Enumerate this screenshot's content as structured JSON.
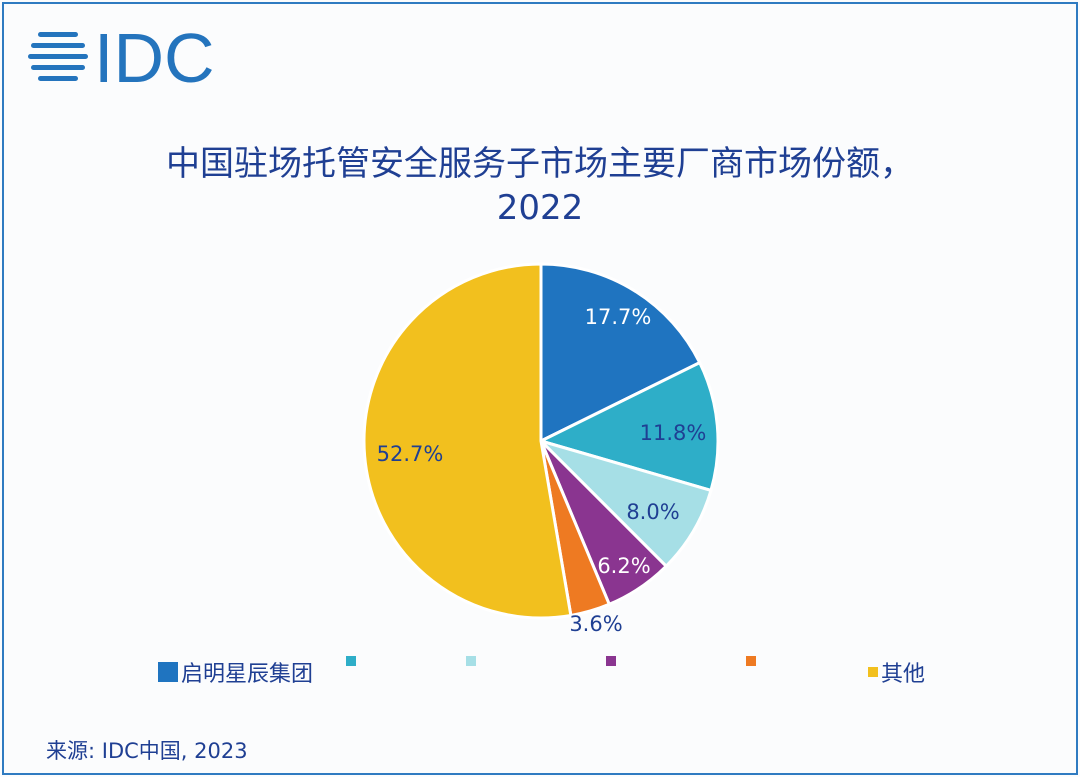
{
  "logo_text": "IDC",
  "chart_data": {
    "type": "pie",
    "title": "中国驻场托管安全服务子市场主要厂商市场份额，",
    "subtitle": "2022",
    "start": "top",
    "direction": "clockwise",
    "slices": [
      {
        "label": "启明星辰集团",
        "value": 17.7,
        "display": "17.7%",
        "color": "#1f74c0",
        "label_color": "#ffffff"
      },
      {
        "label": "",
        "value": 11.8,
        "display": "11.8%",
        "color": "#2eaec8",
        "label_color": "#1f3f93"
      },
      {
        "label": "",
        "value": 8.0,
        "display": "8.0%",
        "color": "#a6dfe6",
        "label_color": "#1f3f93"
      },
      {
        "label": "",
        "value": 6.2,
        "display": "6.2%",
        "color": "#8a3590",
        "label_color": "#ffffff"
      },
      {
        "label": "",
        "value": 3.6,
        "display": "3.6%",
        "color": "#ee7a22",
        "label_color": "#1f3f93"
      },
      {
        "label": "其他",
        "value": 52.7,
        "display": "52.7%",
        "color": "#f2c01e",
        "label_color": "#1f3f93"
      }
    ],
    "legend": "bottom"
  },
  "source": "来源: IDC中国, 2023"
}
